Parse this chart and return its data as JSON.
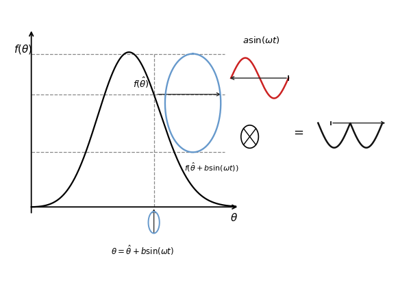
{
  "bg_color": "#ffffff",
  "main_curve_color": "#000000",
  "blue_sine_color": "#6699cc",
  "red_sine_color": "#cc2222",
  "result_curve_color": "#111111",
  "dashed_color": "#888888",
  "arrow_color": "#222222",
  "font_size_labels": 11,
  "font_size_annotations": 9.5,
  "theta_hat": 3.3,
  "b_amplitude": 0.55,
  "main_xlim": [
    -0.2,
    5.8
  ],
  "main_ylim": [
    -0.38,
    1.22
  ]
}
